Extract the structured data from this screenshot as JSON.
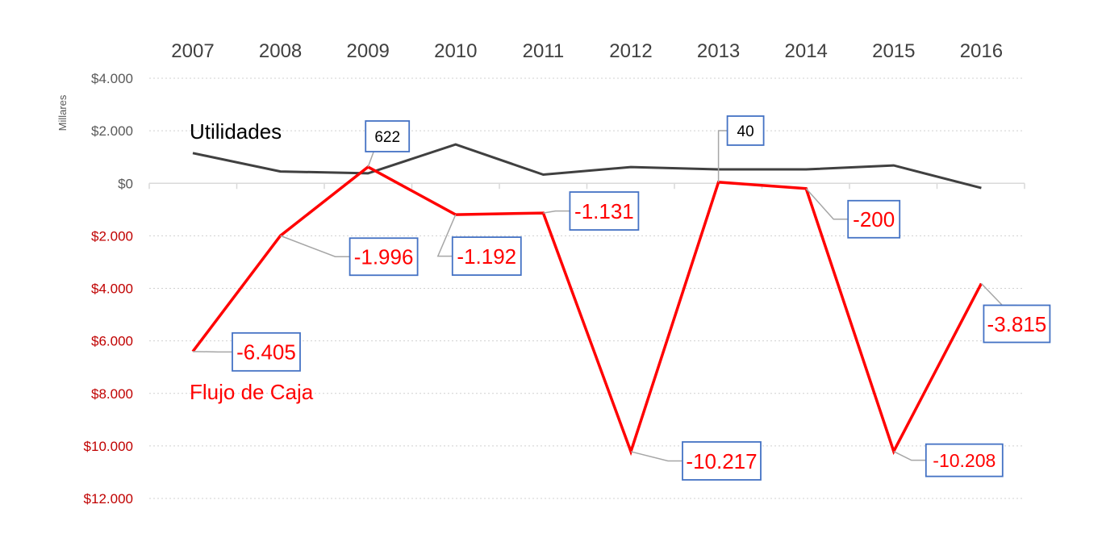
{
  "chart_data": {
    "type": "line",
    "x": [
      "2007",
      "2008",
      "2009",
      "2010",
      "2011",
      "2012",
      "2013",
      "2014",
      "2015",
      "2016"
    ],
    "yunit": "Millares",
    "ylim": [
      -12000,
      4000
    ],
    "yticks": [
      4000,
      2000,
      0,
      -2000,
      -4000,
      -6000,
      -8000,
      -10000,
      -12000
    ],
    "ytick_labels": [
      "$4.000",
      "$2.000",
      "$0",
      "$2.000",
      "$4.000",
      "$6.000",
      "$8.000",
      "$10.000",
      "$12.000"
    ],
    "grid": "horizontal dotted",
    "x_axis_position": "top",
    "series": [
      {
        "name": "Utilidades",
        "color": "#404040",
        "values": [
          1150,
          450,
          380,
          1480,
          330,
          620,
          530,
          530,
          680,
          -180
        ]
      },
      {
        "name": "Flujo de Caja",
        "color": "#ff0000",
        "values": [
          -6405,
          -1996,
          622,
          -1192,
          -1131,
          -10217,
          40,
          -200,
          -10208,
          -3815
        ],
        "data_labels": [
          "-6.405",
          "-1.996",
          "622",
          "-1.192",
          "-1.131",
          "-10.217",
          "40",
          "-200",
          "-10.208",
          "-3.815"
        ]
      }
    ],
    "colors": {
      "negative_tick": "#c00000",
      "positive_tick": "#595959",
      "label_border": "#4472c4",
      "leader_line": "#a6a6a6"
    }
  }
}
